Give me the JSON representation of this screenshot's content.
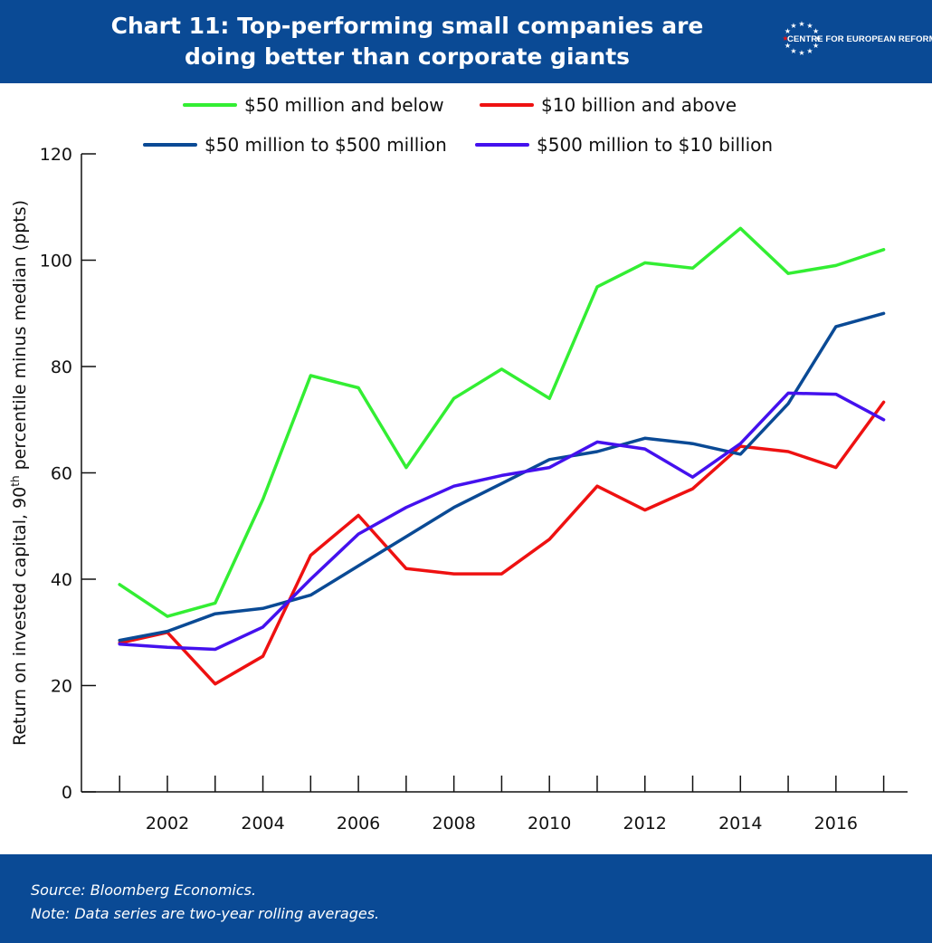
{
  "header": {
    "title_line1": "Chart 11: Top-performing small companies are",
    "title_line2": "doing better than corporate giants",
    "logo_text": "CENTRE FOR EUROPEAN REFORM"
  },
  "footer": {
    "source": "Source: Bloomberg Economics.",
    "note": "Note: Data series are two-year rolling averages."
  },
  "colors": {
    "banner": "#0a4a95",
    "green": "#33ee33",
    "red": "#ee1111",
    "darkblue": "#0a4a95",
    "purple": "#4411ee"
  },
  "chart_data": {
    "type": "line",
    "title": "Chart 11: Top-performing small companies are doing better than corporate giants",
    "ylabel": "Return on invested capital, 90th percentile minus median (ppts)",
    "ylabel_main": "Return on invested capital, 90",
    "ylabel_sup": "th",
    "ylabel_end": " percentile minus median (ppts)",
    "xlabel": "",
    "x": [
      2001,
      2002,
      2003,
      2004,
      2005,
      2006,
      2007,
      2008,
      2009,
      2010,
      2011,
      2012,
      2013,
      2014,
      2015,
      2016,
      2017
    ],
    "x_tick_labels": [
      "2002",
      "2004",
      "2006",
      "2008",
      "2010",
      "2012",
      "2014",
      "2016"
    ],
    "x_tick_values": [
      2002,
      2004,
      2006,
      2008,
      2010,
      2012,
      2014,
      2016
    ],
    "xlim": [
      2000.2,
      2017.5
    ],
    "ylim": [
      0,
      120
    ],
    "y_ticks": [
      0,
      20,
      40,
      60,
      80,
      100,
      120
    ],
    "grid": false,
    "legend_position": "top",
    "series": [
      {
        "name": "$50 million and below",
        "color": "#33ee33",
        "values": [
          39,
          33,
          35.5,
          55,
          78.3,
          76,
          61,
          74,
          79.5,
          74,
          95,
          99.5,
          98.5,
          106,
          97.5,
          99,
          102
        ]
      },
      {
        "name": "$10 billion and above",
        "color": "#ee1111",
        "values": [
          28,
          30,
          20.3,
          25.5,
          44.5,
          52,
          42,
          41,
          41,
          47.5,
          57.5,
          53,
          57,
          65,
          64,
          61,
          73.3
        ]
      },
      {
        "name": "$50 million to $500 million",
        "color": "#0a4a95",
        "values": [
          28.5,
          30.2,
          33.5,
          34.5,
          37,
          42.5,
          48,
          53.5,
          58,
          62.5,
          64,
          66.5,
          65.5,
          63.5,
          73,
          87.5,
          90
        ]
      },
      {
        "name": "$500 million to $10 billion",
        "color": "#4411ee",
        "values": [
          27.8,
          27.2,
          26.8,
          31,
          40,
          48.5,
          53.5,
          57.5,
          59.5,
          61,
          65.8,
          64.5,
          59.2,
          65.5,
          75,
          74.8,
          70
        ]
      }
    ]
  }
}
